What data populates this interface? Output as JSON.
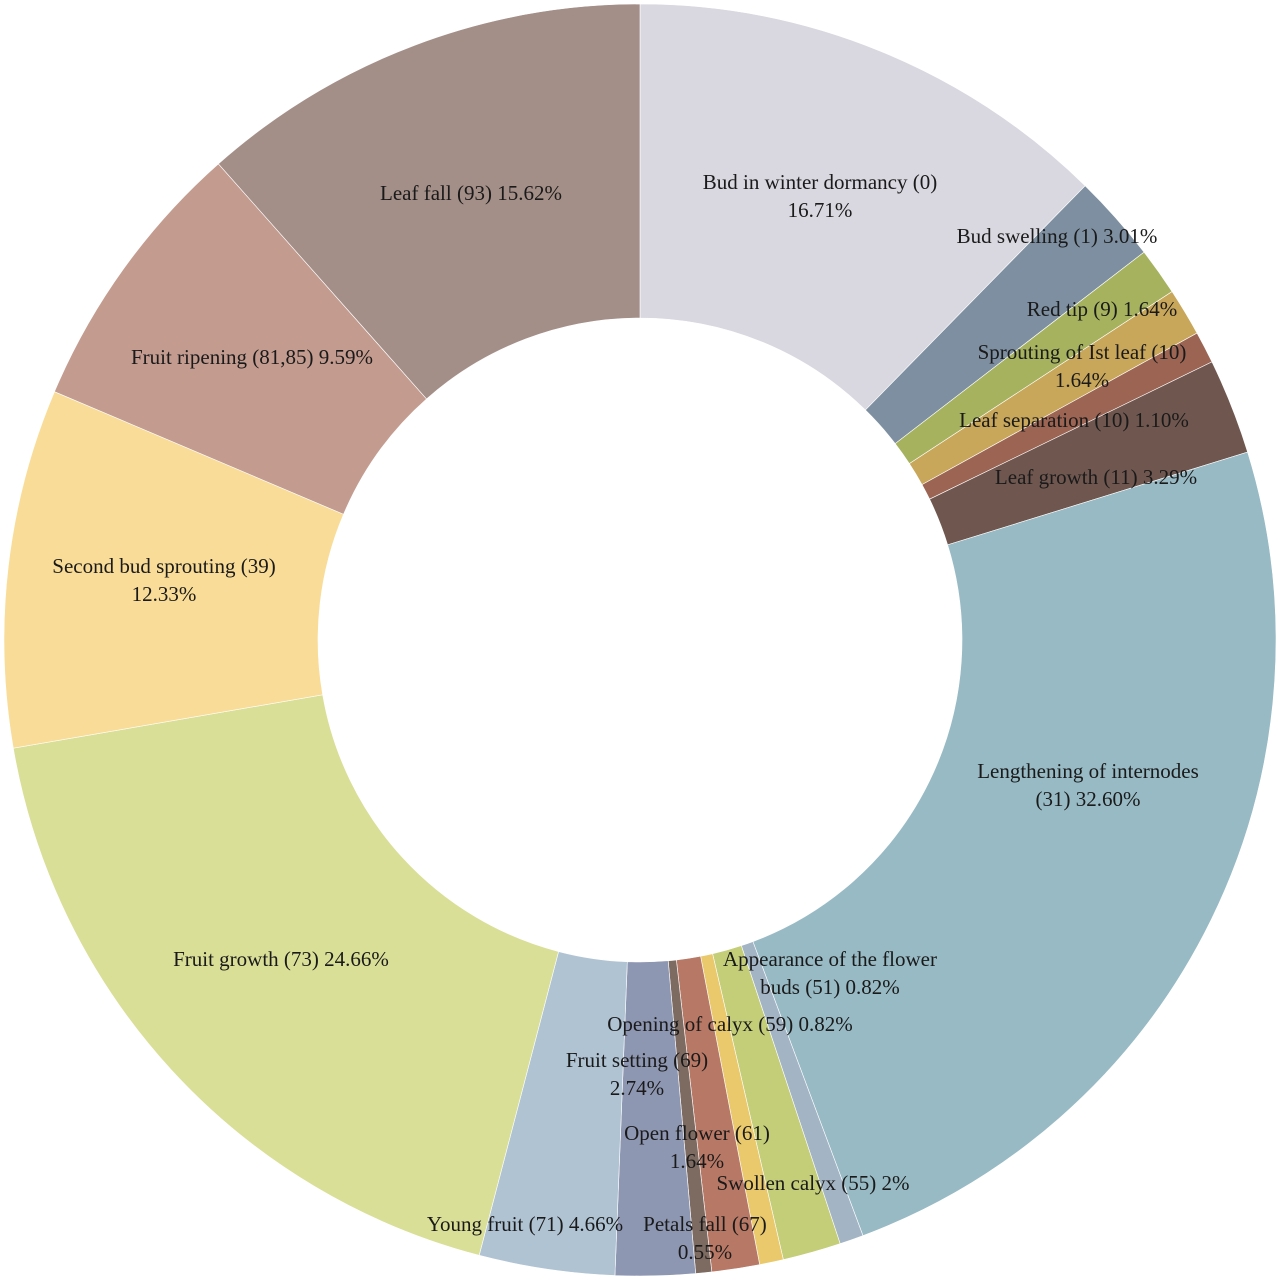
{
  "chart_data": {
    "type": "pie",
    "variant": "donut",
    "order": "clockwise from 12 o'clock",
    "slices": [
      {
        "label_lines": [
          "Bud in winter dormancy (0)",
          "16.71%"
        ],
        "value": 16.71,
        "color": "#d9d7df"
      },
      {
        "label_lines": [
          "Bud swelling (1) 3.01%"
        ],
        "value": 3.01,
        "color": "#7d8fa0"
      },
      {
        "label_lines": [
          "Red tip (9) 1.64%"
        ],
        "value": 1.64,
        "color": "#a6b25e"
      },
      {
        "label_lines": [
          "Sprouting of  Ist leaf (10)",
          "1.64%"
        ],
        "value": 1.64,
        "color": "#c8a65a"
      },
      {
        "label_lines": [
          "Leaf separation (10) 1.10%"
        ],
        "value": 1.1,
        "color": "#9c6453"
      },
      {
        "label_lines": [
          "Leaf growth (11) 3.29%"
        ],
        "value": 3.29,
        "color": "#6f574f"
      },
      {
        "label_lines": [
          "Lengthening of internodes",
          "(31) 32.60%"
        ],
        "value": 32.6,
        "color": "#97bac4"
      },
      {
        "label_lines": [
          "Appearance of the flower",
          "buds (51) 0.82%"
        ],
        "value": 0.82,
        "color": "#a3b4c4"
      },
      {
        "label_lines": [
          "Swollen calyx  (55) 2%"
        ],
        "value": 2.0,
        "color": "#c4cd78"
      },
      {
        "label_lines": [
          "Opening of calyx (59) 0.82%"
        ],
        "value": 0.82,
        "color": "#e9c96c"
      },
      {
        "label_lines": [
          "Open flower (61)",
          "1.64%"
        ],
        "value": 1.64,
        "color": "#b77866"
      },
      {
        "label_lines": [
          "Petals fall  (67)",
          "0.55%"
        ],
        "value": 0.55,
        "color": "#7d6b62"
      },
      {
        "label_lines": [
          "Fruit setting (69)",
          "2.74%"
        ],
        "value": 2.74,
        "color": "#8e97b2"
      },
      {
        "label_lines": [
          "Young  fruit (71) 4.66%"
        ],
        "value": 4.66,
        "color": "#b0c3d3"
      },
      {
        "label_lines": [
          "Fruit growth (73) 24.66%"
        ],
        "value": 24.66,
        "color": "#d9df97"
      },
      {
        "label_lines": [
          "Second bud sprouting (39)",
          "12.33%"
        ],
        "value": 12.33,
        "color": "#f9dc97"
      },
      {
        "label_lines": [
          "Fruit ripening (81,85) 9.59%"
        ],
        "value": 9.59,
        "color": "#c39b8f"
      },
      {
        "label_lines": [
          "Leaf fall (93) 15.62%"
        ],
        "value": 15.62,
        "color": "#a38f88"
      }
    ]
  }
}
